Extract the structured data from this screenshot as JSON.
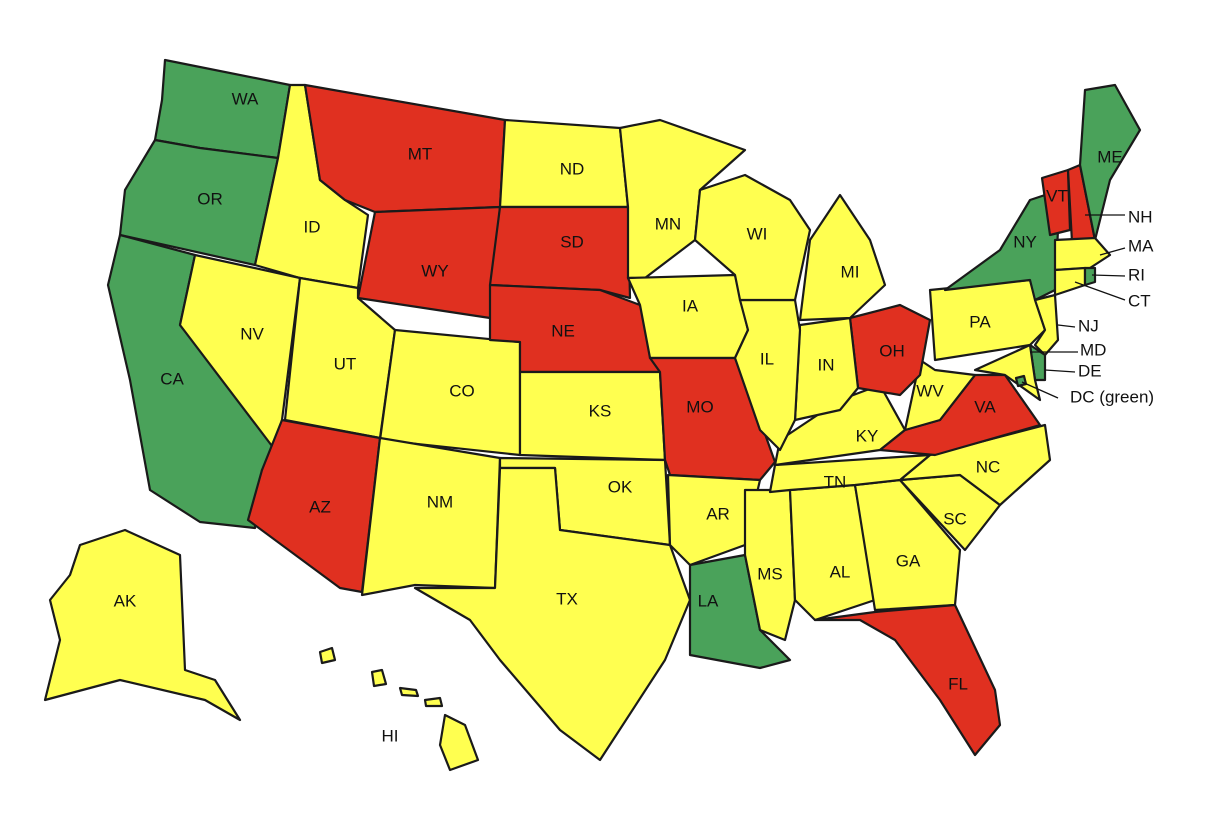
{
  "states": [
    {
      "label": "WA",
      "color": "#4aa25a"
    },
    {
      "label": "OR",
      "color": "#4aa25a"
    },
    {
      "label": "CA",
      "color": "#4aa25a"
    },
    {
      "label": "ID",
      "color": "#ffff50"
    },
    {
      "label": "NV",
      "color": "#ffff50"
    },
    {
      "label": "MT",
      "color": "#e03020"
    },
    {
      "label": "WY",
      "color": "#e03020"
    },
    {
      "label": "UT",
      "color": "#ffff50"
    },
    {
      "label": "CO",
      "color": "#ffff50"
    },
    {
      "label": "AZ",
      "color": "#e03020"
    },
    {
      "label": "NM",
      "color": "#ffff50"
    },
    {
      "label": "ND",
      "color": "#ffff50"
    },
    {
      "label": "SD",
      "color": "#e03020"
    },
    {
      "label": "NE",
      "color": "#e03020"
    },
    {
      "label": "KS",
      "color": "#ffff50"
    },
    {
      "label": "OK",
      "color": "#ffff50"
    },
    {
      "label": "TX",
      "color": "#ffff50"
    },
    {
      "label": "MN",
      "color": "#ffff50"
    },
    {
      "label": "IA",
      "color": "#ffff50"
    },
    {
      "label": "MO",
      "color": "#e03020"
    },
    {
      "label": "AR",
      "color": "#ffff50"
    },
    {
      "label": "LA",
      "color": "#4aa25a"
    },
    {
      "label": "MS",
      "color": "#ffff50"
    },
    {
      "label": "AL",
      "color": "#ffff50"
    },
    {
      "label": "GA",
      "color": "#ffff50"
    },
    {
      "label": "FL",
      "color": "#e03020"
    },
    {
      "label": "SC",
      "color": "#ffff50"
    },
    {
      "label": "NC",
      "color": "#ffff50"
    },
    {
      "label": "TN",
      "color": "#ffff50"
    },
    {
      "label": "KY",
      "color": "#ffff50"
    },
    {
      "label": "VA",
      "color": "#e03020"
    },
    {
      "label": "WV",
      "color": "#ffff50"
    },
    {
      "label": "OH",
      "color": "#e03020"
    },
    {
      "label": "IN",
      "color": "#ffff50"
    },
    {
      "label": "IL",
      "color": "#ffff50"
    },
    {
      "label": "WI",
      "color": "#ffff50"
    },
    {
      "label": "MI",
      "color": "#ffff50"
    },
    {
      "label": "PA",
      "color": "#ffff50"
    },
    {
      "label": "NY",
      "color": "#4aa25a"
    },
    {
      "label": "VT",
      "color": "#e03020"
    },
    {
      "label": "NH",
      "color": "#e03020"
    },
    {
      "label": "ME",
      "color": "#4aa25a"
    },
    {
      "label": "MA",
      "color": "#ffff50"
    },
    {
      "label": "CT",
      "color": "#ffff50"
    },
    {
      "label": "RI",
      "color": "#4aa25a"
    },
    {
      "label": "NJ",
      "color": "#ffff50"
    },
    {
      "label": "DE",
      "color": "#4aa25a"
    },
    {
      "label": "MD",
      "color": "#ffff50"
    },
    {
      "label": "DC (green)",
      "color": "#4aa25a"
    },
    {
      "label": "AK",
      "color": "#ffff50"
    },
    {
      "label": "HI",
      "color": "#ffff50"
    }
  ]
}
